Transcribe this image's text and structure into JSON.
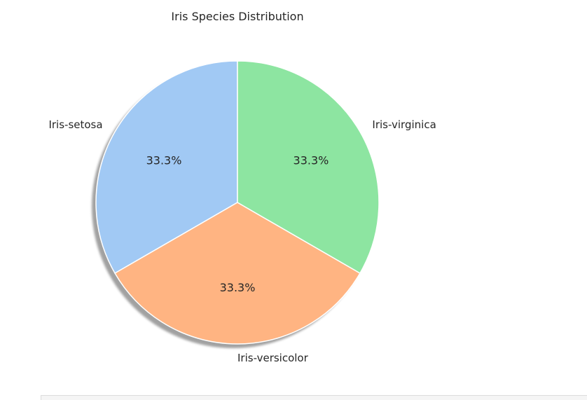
{
  "chart_data": {
    "type": "pie",
    "title": "Iris Species Distribution",
    "slices": [
      {
        "label": "Iris-setosa",
        "value": 33.3,
        "pct_label": "33.3%",
        "color": "#a1c9f4"
      },
      {
        "label": "Iris-versicolor",
        "value": 33.3,
        "pct_label": "33.3%",
        "color": "#ffb482"
      },
      {
        "label": "Iris-virginica",
        "value": 33.3,
        "pct_label": "33.3%",
        "color": "#8de5a1"
      }
    ],
    "start_angle_deg": 90,
    "direction": "counterclockwise",
    "shadow": true
  }
}
